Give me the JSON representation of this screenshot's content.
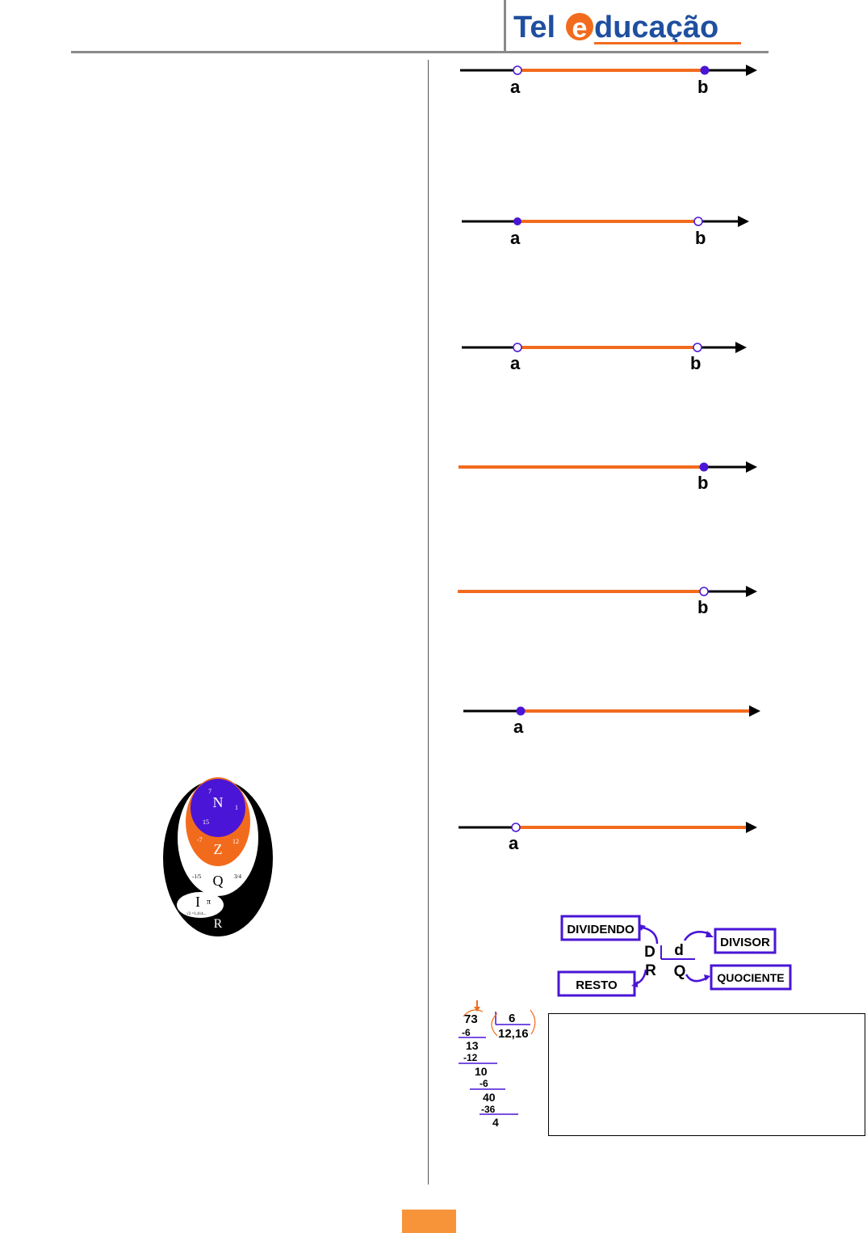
{
  "header": {
    "logo": {
      "prefix": "Tel",
      "e_letter": "e",
      "suffix": "ducação",
      "color_dark": "#1f4fa0",
      "color_accent": "#f26b1d"
    }
  },
  "number_lines": [
    {
      "id": "closed-left-open-right-1",
      "left_label": "a",
      "right_label": "b",
      "left_point": "open",
      "right_point": "closed"
    },
    {
      "id": "line-2",
      "left_label": "a",
      "right_label": "b",
      "left_point": "closed",
      "right_point": "open"
    },
    {
      "id": "line-3",
      "left_label": "a",
      "right_label": "b",
      "left_point": "open",
      "right_point": "open"
    },
    {
      "id": "line-4",
      "left_label": "",
      "right_label": "b",
      "left_point": "none",
      "right_point": "closed"
    },
    {
      "id": "line-5",
      "left_label": "",
      "right_label": "b",
      "left_point": "none",
      "right_point": "open"
    },
    {
      "id": "line-6",
      "left_label": "a",
      "right_label": "",
      "left_point": "closed",
      "right_point": "none"
    },
    {
      "id": "line-7",
      "left_label": "a",
      "right_label": "",
      "left_point": "open",
      "right_point": "none"
    }
  ],
  "sets_diagram": {
    "N": "N",
    "Z": "Z",
    "Q": "Q",
    "I": "I",
    "R": "R",
    "n_examples": [
      "7",
      "1",
      "15"
    ],
    "z_examples": [
      "-7",
      "12"
    ],
    "q_examples": [
      "-1/5",
      "3/4"
    ],
    "i_examples": [
      "π",
      "√2 =1,414..."
    ]
  },
  "division_diagram": {
    "dividendo": "DIVIDENDO",
    "divisor": "DIVISOR",
    "resto": "RESTO",
    "quociente": "QUOCIENTE",
    "D": "D",
    "d": "d",
    "R": "R",
    "Q": "Q"
  },
  "long_division": {
    "dividend": "73",
    "divisor": "6",
    "quotient": "12,16",
    "steps": [
      "-6",
      "13",
      "-12",
      "10",
      "-6",
      "40",
      "-36",
      "4"
    ]
  },
  "colors": {
    "orange": "#f26b1d",
    "purple": "#4a15d6",
    "page_tab": "#f7943a"
  }
}
